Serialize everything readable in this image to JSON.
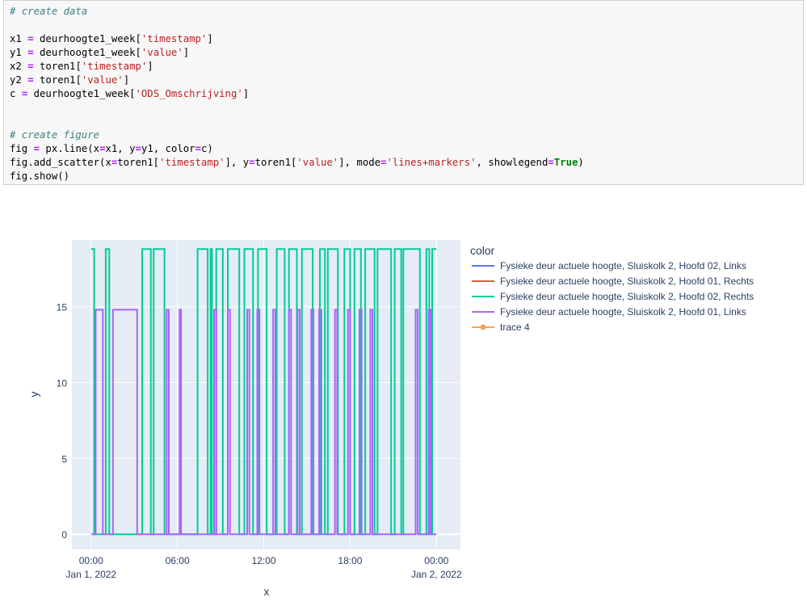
{
  "code_cell": {
    "lines": [
      [
        {
          "t": "# create data",
          "c": "c"
        }
      ],
      [],
      [
        {
          "t": "x1 "
        },
        {
          "t": "=",
          "c": "o"
        },
        {
          "t": " deurhoogte1_week["
        },
        {
          "t": "'timestamp'",
          "c": "s"
        },
        {
          "t": "]"
        }
      ],
      [
        {
          "t": "y1 "
        },
        {
          "t": "=",
          "c": "o"
        },
        {
          "t": " deurhoogte1_week["
        },
        {
          "t": "'value'",
          "c": "s"
        },
        {
          "t": "]"
        }
      ],
      [
        {
          "t": "x2 "
        },
        {
          "t": "=",
          "c": "o"
        },
        {
          "t": " toren1["
        },
        {
          "t": "'timestamp'",
          "c": "s"
        },
        {
          "t": "]"
        }
      ],
      [
        {
          "t": "y2 "
        },
        {
          "t": "=",
          "c": "o"
        },
        {
          "t": " toren1["
        },
        {
          "t": "'value'",
          "c": "s"
        },
        {
          "t": "]"
        }
      ],
      [
        {
          "t": "c "
        },
        {
          "t": "=",
          "c": "o"
        },
        {
          "t": " deurhoogte1_week["
        },
        {
          "t": "'ODS_Omschrijving'",
          "c": "s"
        },
        {
          "t": "]"
        }
      ],
      [],
      [],
      [
        {
          "t": "# create figure",
          "c": "c"
        }
      ],
      [
        {
          "t": "fig "
        },
        {
          "t": "=",
          "c": "o"
        },
        {
          "t": " px.line(x"
        },
        {
          "t": "=",
          "c": "o"
        },
        {
          "t": "x1, y"
        },
        {
          "t": "=",
          "c": "o"
        },
        {
          "t": "y1, color"
        },
        {
          "t": "=",
          "c": "o"
        },
        {
          "t": "c)"
        }
      ],
      [
        {
          "t": "fig.add_scatter(x"
        },
        {
          "t": "=",
          "c": "o"
        },
        {
          "t": "toren1["
        },
        {
          "t": "'timestamp'",
          "c": "s"
        },
        {
          "t": "], y"
        },
        {
          "t": "=",
          "c": "o"
        },
        {
          "t": "toren1["
        },
        {
          "t": "'value'",
          "c": "s"
        },
        {
          "t": "], mode"
        },
        {
          "t": "=",
          "c": "o"
        },
        {
          "t": "'lines+markers'",
          "c": "s"
        },
        {
          "t": ", showlegend"
        },
        {
          "t": "=",
          "c": "o"
        },
        {
          "t": "True",
          "c": "k"
        },
        {
          "t": ")"
        }
      ],
      [
        {
          "t": "fig.show()"
        }
      ]
    ]
  },
  "chart_data": {
    "type": "line",
    "xlabel": "x",
    "ylabel": "y",
    "x_ticks": [
      {
        "hours": 0,
        "line1": "00:00",
        "line2": "Jan 1, 2022"
      },
      {
        "hours": 6,
        "line1": "06:00",
        "line2": ""
      },
      {
        "hours": 12,
        "line1": "12:00",
        "line2": ""
      },
      {
        "hours": 18,
        "line1": "18:00",
        "line2": ""
      },
      {
        "hours": 24,
        "line1": "00:00",
        "line2": "Jan 2, 2022"
      }
    ],
    "y_ticks": [
      0,
      5,
      10,
      15
    ],
    "xlim": [
      "2021-12-31 22:40",
      "2022-01-02 01:40"
    ],
    "ylim": [
      -1,
      19.4
    ],
    "plot_bg": "#e5ecf6",
    "grid": true,
    "legend": {
      "title": "color",
      "placement": "right",
      "entries": [
        {
          "name": "Fysieke deur actuele hoogte, Sluiskolk 2, Hoofd 02, Links",
          "color": "#636efa",
          "markers": false
        },
        {
          "name": "Fysieke deur actuele hoogte, Sluiskolk 2, Hoofd 01, Rechts",
          "color": "#ef553b",
          "markers": false
        },
        {
          "name": "Fysieke deur actuele hoogte, Sluiskolk 2, Hoofd 02, Rechts",
          "color": "#00cc96",
          "markers": false
        },
        {
          "name": "Fysieke deur actuele hoogte, Sluiskolk 2, Hoofd 01, Links",
          "color": "#ab63fa",
          "markers": false
        },
        {
          "name": "trace 4",
          "color": "#ffa15a",
          "markers": true
        }
      ]
    },
    "series": [
      {
        "name": "Fysieke deur actuele hoogte, Sluiskolk 2, Hoofd 02, Rechts",
        "color": "#00cc96",
        "value": 18.8,
        "start_value": 18.8,
        "start_time": "2022-01-01 00:00",
        "end_time": "2022-01-02 00:00",
        "toggles": [
          "00:13",
          "01:01",
          "01:16",
          "03:33",
          "04:09",
          "04:21",
          "05:06",
          "07:24",
          "08:06",
          "08:18",
          "08:24",
          "08:42",
          "09:09",
          "09:30",
          "10:18",
          "10:39",
          "11:15",
          "11:36",
          "12:12",
          "12:54",
          "13:27",
          "13:45",
          "14:18",
          "14:39",
          "15:24",
          "15:54",
          "16:15",
          "16:27",
          "17:09",
          "17:36",
          "18:00",
          "18:18",
          "18:45",
          "19:03",
          "19:42",
          "19:54",
          "20:51",
          "21:06",
          "21:33",
          "21:42",
          "22:51",
          "23:18",
          "23:30",
          "23:42"
        ]
      },
      {
        "name": "Fysieke deur actuele hoogte, Sluiskolk 2, Hoofd 01, Links",
        "color": "#ab63fa",
        "value": 14.8,
        "start_value": 0,
        "start_time": "2022-01-01 00:00",
        "end_time": "2022-01-02 00:00",
        "toggles": [
          "00:19",
          "00:49",
          "01:31",
          "03:12",
          "05:15",
          "05:24",
          "06:09",
          "06:15",
          "08:33",
          "08:42",
          "09:30",
          "09:39",
          "10:51",
          "11:00",
          "11:33",
          "11:42",
          "12:39",
          "12:48",
          "13:45",
          "13:54",
          "14:21",
          "14:30",
          "15:18",
          "15:27",
          "15:51",
          "16:00",
          "16:57",
          "17:06",
          "17:51",
          "18:00",
          "18:39",
          "18:48",
          "19:24",
          "19:33",
          "22:33",
          "22:42",
          "23:27",
          "23:36"
        ]
      }
    ]
  }
}
